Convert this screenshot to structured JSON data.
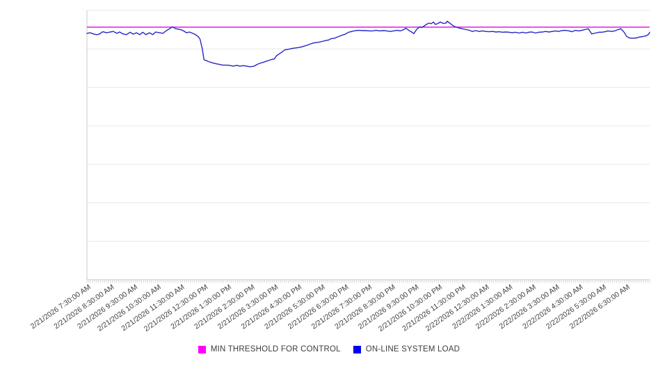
{
  "chart_data": {
    "type": "line",
    "title": "",
    "legend_position": "bottom",
    "x_axis": {
      "tick_labels": [
        "2/21/2026 7:30:00 AM",
        "2/21/2026 8:30:00 AM",
        "2/21/2026 9:30:00 AM",
        "2/21/2026 10:30:00 AM",
        "2/21/2026 11:30:00 AM",
        "2/21/2026 12:30:00 PM",
        "2/21/2026 1:30:00 PM",
        "2/21/2026 2:30:00 PM",
        "2/21/2026 3:30:00 PM",
        "2/21/2026 4:30:00 PM",
        "2/21/2026 5:30:00 PM",
        "2/21/2026 6:30:00 PM",
        "2/21/2026 7:30:00 PM",
        "2/21/2026 8:30:00 PM",
        "2/21/2026 9:30:00 PM",
        "2/21/2026 10:30:00 PM",
        "2/21/2026 11:30:00 PM",
        "2/22/2026 12:30:00 AM",
        "2/22/2026 1:30:00 AM",
        "2/22/2026 2:30:00 AM",
        "2/22/2026 3:30:00 AM",
        "2/22/2026 4:30:00 AM",
        "2/22/2026 5:30:00 AM",
        "2/22/2026 6:30:00 AM"
      ],
      "major_tick_interval": "1 hour",
      "minor_ticks_per_hour": 12,
      "label_rotation_deg": -35
    },
    "y_axis": {
      "tick_labels_visible": false,
      "gridline_intervals": 7,
      "range_pct": [
        0,
        100
      ]
    },
    "series": [
      {
        "name": "MIN THRESHOLD FOR CONTROL",
        "kind": "constant-threshold",
        "value_pct": 93.8,
        "line_color": "#e619e6",
        "swatch_color": "#ff00ff"
      },
      {
        "name": "ON-LINE SYSTEM LOAD",
        "kind": "line",
        "line_color": "#2424c8",
        "swatch_color": "#0000f0",
        "points_pct": [
          [
            0,
            91.5
          ],
          [
            0.6,
            91.7
          ],
          [
            1.1,
            91.3
          ],
          [
            1.7,
            91.0
          ],
          [
            2.2,
            91.2
          ],
          [
            2.8,
            92.1
          ],
          [
            3.5,
            91.7
          ],
          [
            4.1,
            92.0
          ],
          [
            4.7,
            92.2
          ],
          [
            5.3,
            91.5
          ],
          [
            5.8,
            92.0
          ],
          [
            6.4,
            91.3
          ],
          [
            7.0,
            91.0
          ],
          [
            7.7,
            91.9
          ],
          [
            8.2,
            91.2
          ],
          [
            8.8,
            91.7
          ],
          [
            9.4,
            91.0
          ],
          [
            9.9,
            91.9
          ],
          [
            10.5,
            91.0
          ],
          [
            11.1,
            91.7
          ],
          [
            11.7,
            91.0
          ],
          [
            12.2,
            92.0
          ],
          [
            12.9,
            91.7
          ],
          [
            13.5,
            91.5
          ],
          [
            14.1,
            92.5
          ],
          [
            14.7,
            93.2
          ],
          [
            15.2,
            93.9
          ],
          [
            15.8,
            93.2
          ],
          [
            16.4,
            93.0
          ],
          [
            17.1,
            92.5
          ],
          [
            17.7,
            91.7
          ],
          [
            18.2,
            92.0
          ],
          [
            18.8,
            91.5
          ],
          [
            19.3,
            91.0
          ],
          [
            19.8,
            90.2
          ],
          [
            20.1,
            89.3
          ],
          [
            20.5,
            85.8
          ],
          [
            20.8,
            81.7
          ],
          [
            21.3,
            81.3
          ],
          [
            21.6,
            81.0
          ],
          [
            22.2,
            80.6
          ],
          [
            22.9,
            80.2
          ],
          [
            23.5,
            80.0
          ],
          [
            24.1,
            79.7
          ],
          [
            24.7,
            79.7
          ],
          [
            25.3,
            79.6
          ],
          [
            26.0,
            79.3
          ],
          [
            26.6,
            79.6
          ],
          [
            27.2,
            79.3
          ],
          [
            27.8,
            79.5
          ],
          [
            28.4,
            79.3
          ],
          [
            29.0,
            79.1
          ],
          [
            29.7,
            79.3
          ],
          [
            30.3,
            80.0
          ],
          [
            30.9,
            80.5
          ],
          [
            31.3,
            80.7
          ],
          [
            31.8,
            81.1
          ],
          [
            32.3,
            81.4
          ],
          [
            32.8,
            81.8
          ],
          [
            33.3,
            82.0
          ],
          [
            33.7,
            83.2
          ],
          [
            34.2,
            83.9
          ],
          [
            34.7,
            84.6
          ],
          [
            35.2,
            85.4
          ],
          [
            35.7,
            85.5
          ],
          [
            36.2,
            85.8
          ],
          [
            36.8,
            86.0
          ],
          [
            37.5,
            86.2
          ],
          [
            38.1,
            86.4
          ],
          [
            38.7,
            86.8
          ],
          [
            39.3,
            87.2
          ],
          [
            39.9,
            87.7
          ],
          [
            40.5,
            88.0
          ],
          [
            41.2,
            88.2
          ],
          [
            41.8,
            88.5
          ],
          [
            42.4,
            88.8
          ],
          [
            42.9,
            89.0
          ],
          [
            43.4,
            89.5
          ],
          [
            44.0,
            89.7
          ],
          [
            44.6,
            90.2
          ],
          [
            45.2,
            90.7
          ],
          [
            45.9,
            91.2
          ],
          [
            46.5,
            91.9
          ],
          [
            47.1,
            92.2
          ],
          [
            47.7,
            92.5
          ],
          [
            48.3,
            92.6
          ],
          [
            49.0,
            92.5
          ],
          [
            49.6,
            92.5
          ],
          [
            50.2,
            92.4
          ],
          [
            50.8,
            92.4
          ],
          [
            51.4,
            92.6
          ],
          [
            52.0,
            92.4
          ],
          [
            52.7,
            92.5
          ],
          [
            53.3,
            92.4
          ],
          [
            53.9,
            92.2
          ],
          [
            54.5,
            92.4
          ],
          [
            55.1,
            92.6
          ],
          [
            55.7,
            92.4
          ],
          [
            56.2,
            92.8
          ],
          [
            56.7,
            93.4
          ],
          [
            57.2,
            92.6
          ],
          [
            57.7,
            92.0
          ],
          [
            58.1,
            91.4
          ],
          [
            58.6,
            93.0
          ],
          [
            59.1,
            93.9
          ],
          [
            59.5,
            93.7
          ],
          [
            60.0,
            94.3
          ],
          [
            60.3,
            94.8
          ],
          [
            60.8,
            95.3
          ],
          [
            61.2,
            95.1
          ],
          [
            61.6,
            95.7
          ],
          [
            61.9,
            94.8
          ],
          [
            62.4,
            95.2
          ],
          [
            62.8,
            95.7
          ],
          [
            63.3,
            95.2
          ],
          [
            63.8,
            95.3
          ],
          [
            64.0,
            96.0
          ],
          [
            64.6,
            95.1
          ],
          [
            65.0,
            94.4
          ],
          [
            65.5,
            93.9
          ],
          [
            66.1,
            93.5
          ],
          [
            66.7,
            93.2
          ],
          [
            67.4,
            92.9
          ],
          [
            68.0,
            92.6
          ],
          [
            68.5,
            92.2
          ],
          [
            69.1,
            92.5
          ],
          [
            69.7,
            92.2
          ],
          [
            70.3,
            92.4
          ],
          [
            70.9,
            92.2
          ],
          [
            71.4,
            92.1
          ],
          [
            72.1,
            92.2
          ],
          [
            72.7,
            92.0
          ],
          [
            73.3,
            92.1
          ],
          [
            73.8,
            91.9
          ],
          [
            74.4,
            92.0
          ],
          [
            75.0,
            91.9
          ],
          [
            75.6,
            91.7
          ],
          [
            76.1,
            91.9
          ],
          [
            76.8,
            91.6
          ],
          [
            77.4,
            91.9
          ],
          [
            78.0,
            91.6
          ],
          [
            78.5,
            91.9
          ],
          [
            79.1,
            92.0
          ],
          [
            79.7,
            91.6
          ],
          [
            80.3,
            91.9
          ],
          [
            81.0,
            92.0
          ],
          [
            81.5,
            92.2
          ],
          [
            82.1,
            92.0
          ],
          [
            82.7,
            92.2
          ],
          [
            83.3,
            92.4
          ],
          [
            83.8,
            92.2
          ],
          [
            84.4,
            92.5
          ],
          [
            85.0,
            92.6
          ],
          [
            85.7,
            92.4
          ],
          [
            86.2,
            92.1
          ],
          [
            86.8,
            92.6
          ],
          [
            87.4,
            92.4
          ],
          [
            88.0,
            92.6
          ],
          [
            88.5,
            92.9
          ],
          [
            89.1,
            93.2
          ],
          [
            89.7,
            91.3
          ],
          [
            90.4,
            91.6
          ],
          [
            91.0,
            91.9
          ],
          [
            91.5,
            91.9
          ],
          [
            92.1,
            92.1
          ],
          [
            92.6,
            92.4
          ],
          [
            93.2,
            92.2
          ],
          [
            93.8,
            92.4
          ],
          [
            94.4,
            92.9
          ],
          [
            94.9,
            93.2
          ],
          [
            95.5,
            91.8
          ],
          [
            95.9,
            90.4
          ],
          [
            96.4,
            89.8
          ],
          [
            97.0,
            89.7
          ],
          [
            97.7,
            89.8
          ],
          [
            98.1,
            90.1
          ],
          [
            98.8,
            90.3
          ],
          [
            99.4,
            90.6
          ],
          [
            99.8,
            91.1
          ],
          [
            100,
            91.9
          ]
        ]
      }
    ],
    "colors": {
      "gridline": "#e7e7e7",
      "axis_line": "#c9c9c9",
      "tick_label_text": "#3f3f3f",
      "background": "#ffffff"
    }
  }
}
